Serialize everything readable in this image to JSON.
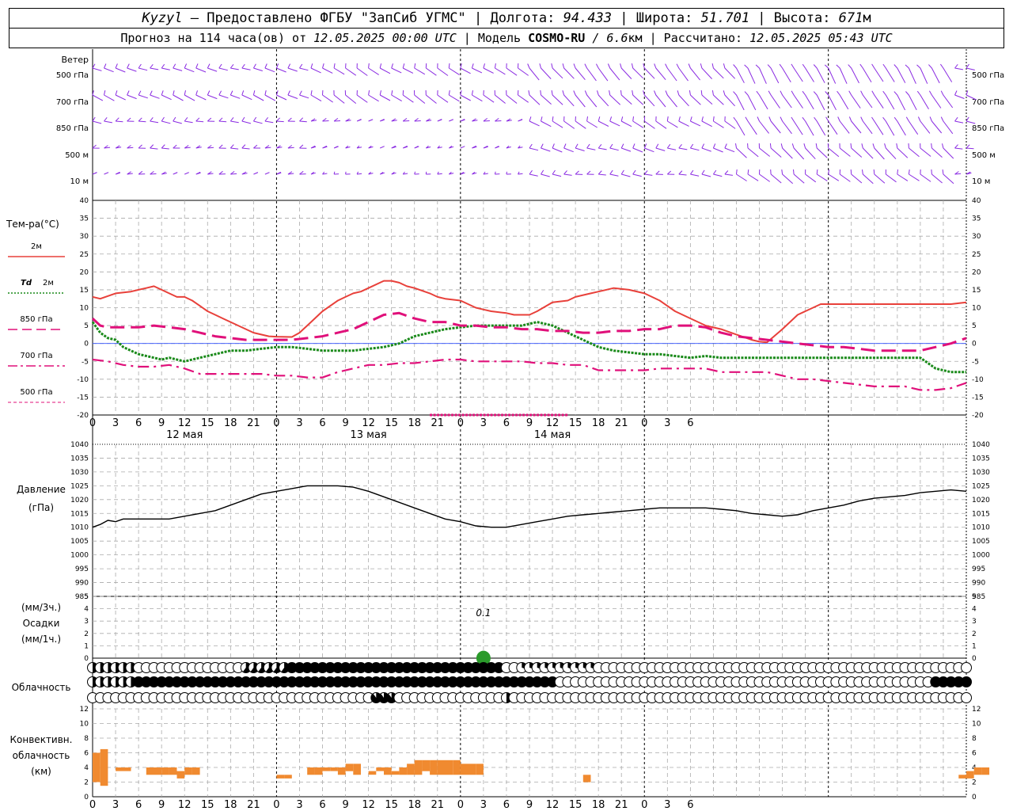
{
  "header": {
    "station": "Kyzyl",
    "dash": " – ",
    "provided_by": "Предоставлено ФГБУ \"ЗапСиб УГМС\"",
    "sep": " | ",
    "lon_label": "Долгота: ",
    "lon": "94.433",
    "lat_label": "Широта: ",
    "lat": "51.701",
    "alt_label": "Высота: ",
    "alt": "671",
    "alt_unit": "м",
    "forecast_label": "Прогноз на 114 часа(ов) от ",
    "forecast_start": "12.05.2025 00:00 UTC",
    "model_label": " | Модель ",
    "model": "COSMO-RU",
    "resolution": " / 6.6",
    "resolution_unit": "км",
    "calc_label": " | Рассчитано: ",
    "calc_time": "12.05.2025 05:43 UTC"
  },
  "colors": {
    "wind": "#8a2be2",
    "t2m": "#e8403a",
    "td2m": "#1a8a1a",
    "t850": "#e0107a",
    "t700": "#e0107a",
    "t500": "#e0107a",
    "pressure": "#000000",
    "convective": "#f08a30",
    "zero_line": "#3050ff",
    "grid": "#aaaaaa"
  },
  "x_axis": {
    "hour_ticks": [
      "0",
      "3",
      "6",
      "9",
      "12",
      "15",
      "18",
      "21",
      "0",
      "3",
      "6",
      "9",
      "12",
      "15",
      "18",
      "21",
      "0",
      "3",
      "6",
      "9",
      "12",
      "15",
      "18",
      "21",
      "0",
      "3",
      "6"
    ],
    "day_labels": [
      "12 мая",
      "13 мая",
      "14 мая"
    ]
  },
  "wind_panel": {
    "title": "Ветер",
    "levels": [
      "500 гПа",
      "700 гПа",
      "850 гПа",
      "500 м",
      "10 м"
    ]
  },
  "temp_panel": {
    "title": "Тем-ра(°С)",
    "legend": [
      {
        "label": "2м",
        "style": "solid",
        "color": "#e8403a"
      },
      {
        "label": "Td 2м",
        "style": "dotted",
        "color": "#1a8a1a"
      },
      {
        "label": "850 гПа",
        "style": "dashed",
        "color": "#e0107a"
      },
      {
        "label": "700 гПа",
        "style": "dashdot",
        "color": "#e0107a"
      },
      {
        "label": "500 гПа",
        "style": "dashed-thin",
        "color": "#e0107a"
      }
    ],
    "y_ticks": [
      "40",
      "35",
      "30",
      "25",
      "20",
      "15",
      "10",
      "5",
      "0",
      "-5",
      "-10",
      "-15",
      "-20"
    ]
  },
  "pressure_panel": {
    "title": "Давление",
    "unit": "(гПа)",
    "y_ticks": [
      "1040",
      "1035",
      "1030",
      "1025",
      "1020",
      "1015",
      "1010",
      "1005",
      "1000",
      "995",
      "990",
      "985"
    ]
  },
  "precip_panel": {
    "unit_3h": "(мм/3ч.)",
    "title": "Осадки",
    "unit_1h": "(мм/1ч.)",
    "y_ticks": [
      "5",
      "4",
      "3",
      "2",
      "1",
      "0"
    ],
    "annotation": "0.1"
  },
  "cloud_panel": {
    "title": "Облачность"
  },
  "conv_panel": {
    "title_1": "Конвективн.",
    "title_2": "облачность",
    "unit": "(км)",
    "y_ticks": [
      "12",
      "10",
      "8",
      "6",
      "4",
      "2",
      "0"
    ]
  },
  "chart_data": [
    {
      "type": "line",
      "title": "Тем-ра(°С)",
      "x_unit": "hours from 12.05.2025 00:00 UTC",
      "ylim": [
        -20,
        40
      ],
      "grid": true,
      "series": [
        {
          "name": "2м",
          "x": [
            0,
            1,
            3,
            5,
            6,
            7,
            8,
            9,
            10,
            11,
            12,
            13,
            14,
            15,
            16,
            17,
            18,
            19,
            20,
            21,
            22,
            23,
            24,
            26,
            27,
            28,
            29,
            30,
            32,
            33,
            34,
            35,
            36,
            38,
            39,
            40,
            41,
            42,
            44,
            45,
            46,
            48,
            49,
            50,
            51,
            52,
            54,
            55,
            56,
            57,
            58,
            60,
            62,
            63,
            65,
            66,
            68,
            70,
            72,
            74,
            76,
            78,
            80,
            82,
            84,
            86,
            87,
            88,
            90,
            92,
            93,
            94,
            95,
            96,
            98,
            99,
            100,
            101,
            102,
            104,
            106,
            107,
            108,
            110,
            111,
            112,
            114
          ],
          "y": [
            13,
            12.5,
            14,
            14.5,
            15,
            15.5,
            16,
            15,
            14,
            13,
            13,
            12,
            10.5,
            9,
            8,
            7,
            6,
            5,
            4,
            3,
            2.5,
            2,
            1.9,
            1.8,
            3,
            5,
            7,
            9,
            12,
            13,
            14,
            14.5,
            15.5,
            17.5,
            17.5,
            17,
            16,
            15.5,
            14,
            13,
            12.5,
            12,
            11,
            10,
            9.5,
            9,
            8.5,
            8,
            8,
            8,
            9,
            11.5,
            12,
            13,
            14,
            14.5,
            15.5,
            15,
            14,
            12,
            9,
            7,
            5,
            4,
            2.5,
            1,
            0.5,
            0.3,
            4,
            8,
            9,
            10,
            11,
            11,
            11,
            11,
            11,
            11,
            11,
            11,
            11,
            11,
            11,
            11,
            11,
            11,
            11.5
          ]
        },
        {
          "name": "Td 2м",
          "x": [
            0,
            1,
            2,
            3,
            4,
            6,
            8,
            9,
            10,
            12,
            14,
            16,
            18,
            20,
            22,
            24,
            26,
            28,
            30,
            32,
            34,
            36,
            38,
            40,
            42,
            44,
            46,
            48,
            50,
            52,
            54,
            56,
            58,
            60,
            62,
            64,
            66,
            68,
            70,
            72,
            74,
            76,
            78,
            80,
            82,
            84,
            86,
            88,
            90,
            92,
            94,
            96,
            98,
            100,
            102,
            104,
            106,
            108,
            110,
            112,
            114
          ],
          "y": [
            6,
            3,
            1.5,
            1,
            -1,
            -3,
            -4,
            -4.5,
            -4,
            -5,
            -4,
            -3,
            -2,
            -2,
            -1.5,
            -1,
            -1,
            -1.5,
            -2,
            -2,
            -2,
            -1.5,
            -1,
            0,
            2,
            3,
            4,
            4.5,
            5,
            5,
            5,
            5,
            6,
            5,
            3,
            1,
            -1,
            -2,
            -2.5,
            -3,
            -3,
            -3.5,
            -4,
            -3.5,
            -4,
            -4,
            -4,
            -4,
            -4,
            -4,
            -4,
            -4,
            -4,
            -4,
            -4,
            -4,
            -4,
            -4,
            -7,
            -8,
            -8
          ]
        },
        {
          "name": "850 гПа",
          "x": [
            0,
            1,
            2,
            3,
            4,
            6,
            8,
            10,
            12,
            14,
            16,
            18,
            20,
            22,
            24,
            26,
            28,
            30,
            32,
            34,
            36,
            38,
            40,
            42,
            44,
            46,
            48,
            50,
            52,
            54,
            56,
            58,
            60,
            62,
            64,
            66,
            68,
            70,
            72,
            74,
            76,
            78,
            80,
            82,
            84,
            86,
            88,
            90,
            92,
            94,
            96,
            98,
            100,
            102,
            104,
            106,
            108,
            110,
            112,
            114
          ],
          "y": [
            7,
            5,
            4.5,
            4.5,
            4.5,
            4.5,
            5,
            4.5,
            4,
            3,
            2,
            1.5,
            1,
            1,
            1,
            1,
            1.5,
            2,
            3,
            4,
            6,
            8,
            8.5,
            7,
            6,
            6,
            5,
            5,
            4.5,
            4.5,
            4,
            4,
            3.5,
            3.5,
            3,
            3,
            3.5,
            3.5,
            4,
            4,
            5,
            5,
            4.5,
            3,
            2,
            1.5,
            1,
            0.5,
            0,
            -0.5,
            -1,
            -1,
            -1.5,
            -2,
            -2,
            -2,
            -2,
            -1,
            0,
            1.5
          ]
        },
        {
          "name": "700 гПа",
          "x": [
            0,
            2,
            4,
            6,
            8,
            10,
            12,
            14,
            16,
            18,
            20,
            22,
            24,
            26,
            28,
            30,
            32,
            34,
            36,
            38,
            40,
            42,
            44,
            46,
            48,
            50,
            52,
            54,
            56,
            58,
            60,
            62,
            64,
            66,
            68,
            70,
            72,
            74,
            76,
            78,
            80,
            82,
            84,
            86,
            88,
            90,
            92,
            94,
            96,
            98,
            100,
            102,
            104,
            106,
            108,
            110,
            112,
            114
          ],
          "y": [
            -4.5,
            -5,
            -6,
            -6.5,
            -6.5,
            -6,
            -7,
            -8.5,
            -8.5,
            -8.5,
            -8.5,
            -8.5,
            -9,
            -9,
            -9.5,
            -9.5,
            -8,
            -7,
            -6,
            -6,
            -5.5,
            -5.5,
            -5,
            -4.5,
            -4.5,
            -5,
            -5,
            -5,
            -5,
            -5.5,
            -5.5,
            -6,
            -6,
            -7.5,
            -7.5,
            -7.5,
            -7.5,
            -7,
            -7,
            -7,
            -7,
            -8,
            -8,
            -8,
            -8,
            -9,
            -10,
            -10,
            -10.5,
            -11,
            -11.5,
            -12,
            -12,
            -12,
            -13,
            -13,
            -12.5,
            -11
          ]
        },
        {
          "name": "500 гПа",
          "x": [
            44,
            45,
            46,
            47,
            48,
            49,
            50,
            51,
            52,
            53,
            54,
            55,
            56,
            57,
            58,
            59,
            60,
            61,
            62
          ],
          "y": [
            -20,
            -20,
            -20,
            -20,
            -20,
            -20,
            -20,
            -20,
            -20,
            -20,
            -20,
            -20,
            -20,
            -20,
            -20,
            -20,
            -20,
            -20,
            -20
          ]
        }
      ]
    },
    {
      "type": "line",
      "title": "Давление",
      "ylabel": "(гПа)",
      "ylim": [
        985,
        1040
      ],
      "grid": true,
      "series": [
        {
          "name": "Давление",
          "x": [
            0,
            1,
            2,
            3,
            4,
            5,
            6,
            8,
            10,
            12,
            14,
            16,
            18,
            20,
            22,
            24,
            26,
            28,
            30,
            32,
            34,
            36,
            38,
            40,
            42,
            44,
            46,
            48,
            50,
            52,
            54,
            56,
            58,
            60,
            62,
            64,
            66,
            68,
            70,
            72,
            74,
            76,
            78,
            80,
            82,
            84,
            86,
            88,
            90,
            92,
            94,
            96,
            98,
            100,
            102,
            104,
            106,
            108,
            110,
            112,
            114
          ],
          "y": [
            1010,
            1011,
            1012.5,
            1012,
            1013,
            1013,
            1013,
            1013,
            1013,
            1014,
            1015,
            1016,
            1018,
            1020,
            1022,
            1023,
            1024,
            1025,
            1025,
            1025,
            1024.5,
            1023,
            1021,
            1019,
            1017,
            1015,
            1013,
            1012,
            1010.5,
            1010,
            1010,
            1011,
            1012,
            1013,
            1014,
            1014.5,
            1015,
            1015.5,
            1016,
            1016.5,
            1017,
            1017,
            1017,
            1017,
            1016.5,
            1016,
            1015,
            1014.5,
            1014,
            1014.5,
            1016,
            1017,
            1018,
            1019.5,
            1020.5,
            1021,
            1021.5,
            1022.5,
            1023,
            1023.5,
            1023
          ]
        }
      ]
    },
    {
      "type": "bar",
      "title": "Осадки",
      "ylabel": "(мм/1ч.)",
      "ylim": [
        0,
        5
      ],
      "grid": true,
      "annotation": "0.1",
      "series": [
        {
          "name": "Осадки",
          "x": [
            51
          ],
          "values": [
            0.1
          ]
        }
      ]
    },
    {
      "type": "bar",
      "title": "Конвективн. облачность",
      "ylabel": "(км)",
      "ylim": [
        0,
        12
      ],
      "grid": true,
      "series": [
        {
          "name": "Конвективн. облачность",
          "x_start": [
            0,
            1,
            3,
            7,
            8,
            9,
            10,
            11,
            12,
            13,
            24,
            25,
            28,
            29,
            30,
            31,
            32,
            33,
            34,
            35,
            36,
            37,
            38,
            39,
            40,
            41,
            42,
            43,
            44,
            45,
            46,
            47,
            48,
            49,
            50,
            64,
            113,
            114,
            115,
            116
          ],
          "x_end": [
            1,
            2,
            5,
            8,
            9,
            10,
            11,
            12,
            13,
            14,
            25,
            26,
            29,
            30,
            31,
            32,
            33,
            34,
            35,
            36,
            37,
            38,
            39,
            40,
            41,
            42,
            43,
            44,
            45,
            46,
            47,
            48,
            49,
            50,
            51,
            65,
            114,
            115,
            116,
            117
          ],
          "bottom": [
            2,
            1.5,
            3.5,
            3,
            3,
            3,
            3,
            2.5,
            3,
            3,
            2.5,
            2.5,
            3,
            3,
            3.5,
            3.5,
            3,
            3.5,
            3,
            3.5,
            3,
            3.5,
            3,
            3,
            3,
            3,
            3,
            3.5,
            3,
            3,
            3,
            3,
            3,
            3,
            3,
            2,
            2.5,
            2.5,
            3,
            3
          ],
          "top": [
            6,
            6.5,
            4,
            4,
            4,
            4,
            4,
            3.5,
            4,
            4,
            3,
            3,
            4,
            4,
            4,
            4,
            4,
            4.5,
            4.5,
            3.5,
            3.5,
            4,
            4,
            3.5,
            4,
            4.5,
            5,
            5,
            5,
            5,
            5,
            5,
            4.5,
            4.5,
            4.5,
            3,
            3,
            3.5,
            4,
            4
          ]
        }
      ]
    }
  ]
}
